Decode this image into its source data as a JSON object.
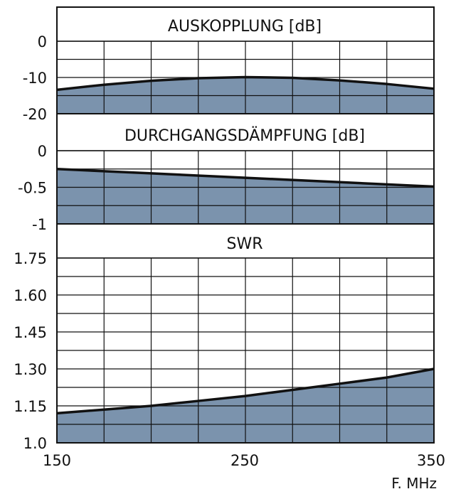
{
  "colors": {
    "fill": "#7b93ad",
    "line": "#111111",
    "grid": "#111111",
    "background": "#ffffff"
  },
  "chart_data": [
    {
      "type": "area",
      "title": "AUSKOPPLUNG [dB]",
      "x": [
        150,
        175,
        200,
        225,
        250,
        275,
        300,
        325,
        350
      ],
      "values": [
        -13.4,
        -12.0,
        -10.9,
        -10.2,
        -9.9,
        -10.1,
        -10.8,
        -11.8,
        -13.1
      ],
      "ylim": [
        -20,
        0
      ],
      "xlim": [
        150,
        350
      ],
      "y_tick_labels": [
        "0",
        "-10",
        "-20"
      ],
      "grid": true
    },
    {
      "type": "area",
      "title": "DURCHGANGSDÄMPFUNG [dB]",
      "x": [
        150,
        200,
        250,
        300,
        350
      ],
      "values": [
        -0.25,
        -0.31,
        -0.37,
        -0.43,
        -0.49
      ],
      "ylim": [
        -1,
        0
      ],
      "xlim": [
        150,
        350
      ],
      "y_tick_labels": [
        "0",
        "-0.5",
        "-1"
      ],
      "grid": true
    },
    {
      "type": "area",
      "title": "SWR",
      "x": [
        150,
        175,
        200,
        225,
        250,
        275,
        300,
        325,
        350
      ],
      "values": [
        1.12,
        1.135,
        1.15,
        1.17,
        1.19,
        1.215,
        1.24,
        1.265,
        1.3
      ],
      "ylim": [
        1.0,
        1.75
      ],
      "xlim": [
        150,
        350
      ],
      "y_tick_labels": [
        "1.75",
        "1.60",
        "1.45",
        "1.30",
        "1.15",
        "1.0"
      ],
      "x_tick_labels": [
        "150",
        "250",
        "350"
      ],
      "xlabel": "F. MHz",
      "grid": true
    }
  ]
}
